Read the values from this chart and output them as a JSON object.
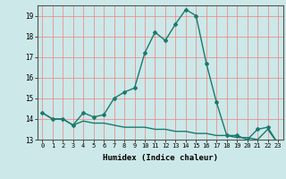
{
  "title": "",
  "xlabel": "Humidex (Indice chaleur)",
  "x_values": [
    0,
    1,
    2,
    3,
    4,
    5,
    6,
    7,
    8,
    9,
    10,
    11,
    12,
    13,
    14,
    15,
    16,
    17,
    18,
    19,
    20,
    21,
    22,
    23
  ],
  "series1": [
    14.3,
    14.0,
    14.0,
    13.7,
    14.3,
    14.1,
    14.2,
    15.0,
    15.3,
    15.5,
    17.2,
    18.2,
    17.8,
    18.6,
    19.3,
    19.0,
    16.7,
    14.8,
    13.2,
    13.2,
    13.0,
    13.5,
    13.6,
    12.8
  ],
  "series2": [
    14.3,
    14.0,
    14.0,
    13.7,
    13.9,
    13.8,
    13.8,
    13.7,
    13.6,
    13.6,
    13.6,
    13.5,
    13.5,
    13.4,
    13.4,
    13.3,
    13.3,
    13.2,
    13.2,
    13.1,
    13.1,
    13.0,
    13.5,
    12.8
  ],
  "line_color": "#1a7a6e",
  "bg_color": "#cce8e8",
  "grid_color": "#f08080",
  "ylim": [
    13.0,
    19.5
  ],
  "yticks": [
    13,
    14,
    15,
    16,
    17,
    18,
    19
  ],
  "xlim": [
    -0.5,
    23.5
  ],
  "marker": "D",
  "markersize": 2,
  "linewidth": 1.0
}
